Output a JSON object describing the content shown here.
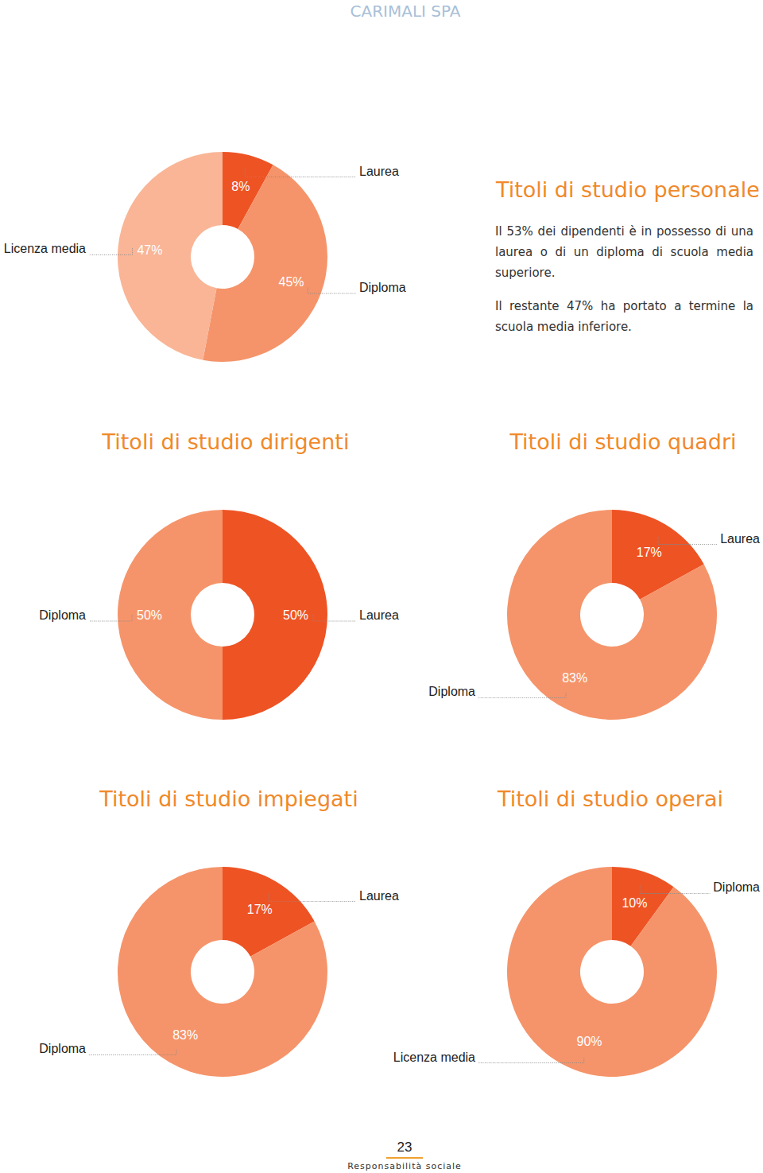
{
  "header": "CARIMALI SPA",
  "page_number": 23,
  "footer": "Responsabilità sociale",
  "chart_data": [
    {
      "type": "donut",
      "title": "Titoli di studio personale",
      "categories": [
        "Laurea",
        "Diploma",
        "Licenza media"
      ],
      "values": [
        8,
        45,
        47
      ],
      "value_labels": [
        "8%",
        "45%",
        "47%"
      ],
      "colors": [
        "#ee5324",
        "#f5946a",
        "#f9b596"
      ],
      "data_labels": true,
      "annotations": [
        "Il 53% dei dipendenti è in possesso di una laurea o di un diploma di scuola media superiore.",
        "Il restante 47% ha portato a termine la scuola media inferiore."
      ]
    },
    {
      "type": "donut",
      "title": "Titoli di studio dirigenti",
      "categories": [
        "Laurea",
        "Diploma"
      ],
      "values": [
        50,
        50
      ],
      "value_labels": [
        "50%",
        "50%"
      ],
      "colors": [
        "#ee5324",
        "#f5946a"
      ],
      "data_labels": true
    },
    {
      "type": "donut",
      "title": "Titoli di studio quadri",
      "categories": [
        "Laurea",
        "Diploma"
      ],
      "values": [
        17,
        83
      ],
      "value_labels": [
        "17%",
        "83%"
      ],
      "colors": [
        "#ee5324",
        "#f5946a"
      ],
      "data_labels": true
    },
    {
      "type": "donut",
      "title": "Titoli di studio impiegati",
      "categories": [
        "Laurea",
        "Diploma"
      ],
      "values": [
        17,
        83
      ],
      "value_labels": [
        "17%",
        "83%"
      ],
      "colors": [
        "#ee5324",
        "#f5946a"
      ],
      "data_labels": true
    },
    {
      "type": "donut",
      "title": "Titoli di studio operai",
      "categories": [
        "Diploma",
        "Licenza media"
      ],
      "values": [
        10,
        90
      ],
      "value_labels": [
        "10%",
        "90%"
      ],
      "colors": [
        "#ee5324",
        "#f5946a"
      ],
      "data_labels": true
    }
  ]
}
